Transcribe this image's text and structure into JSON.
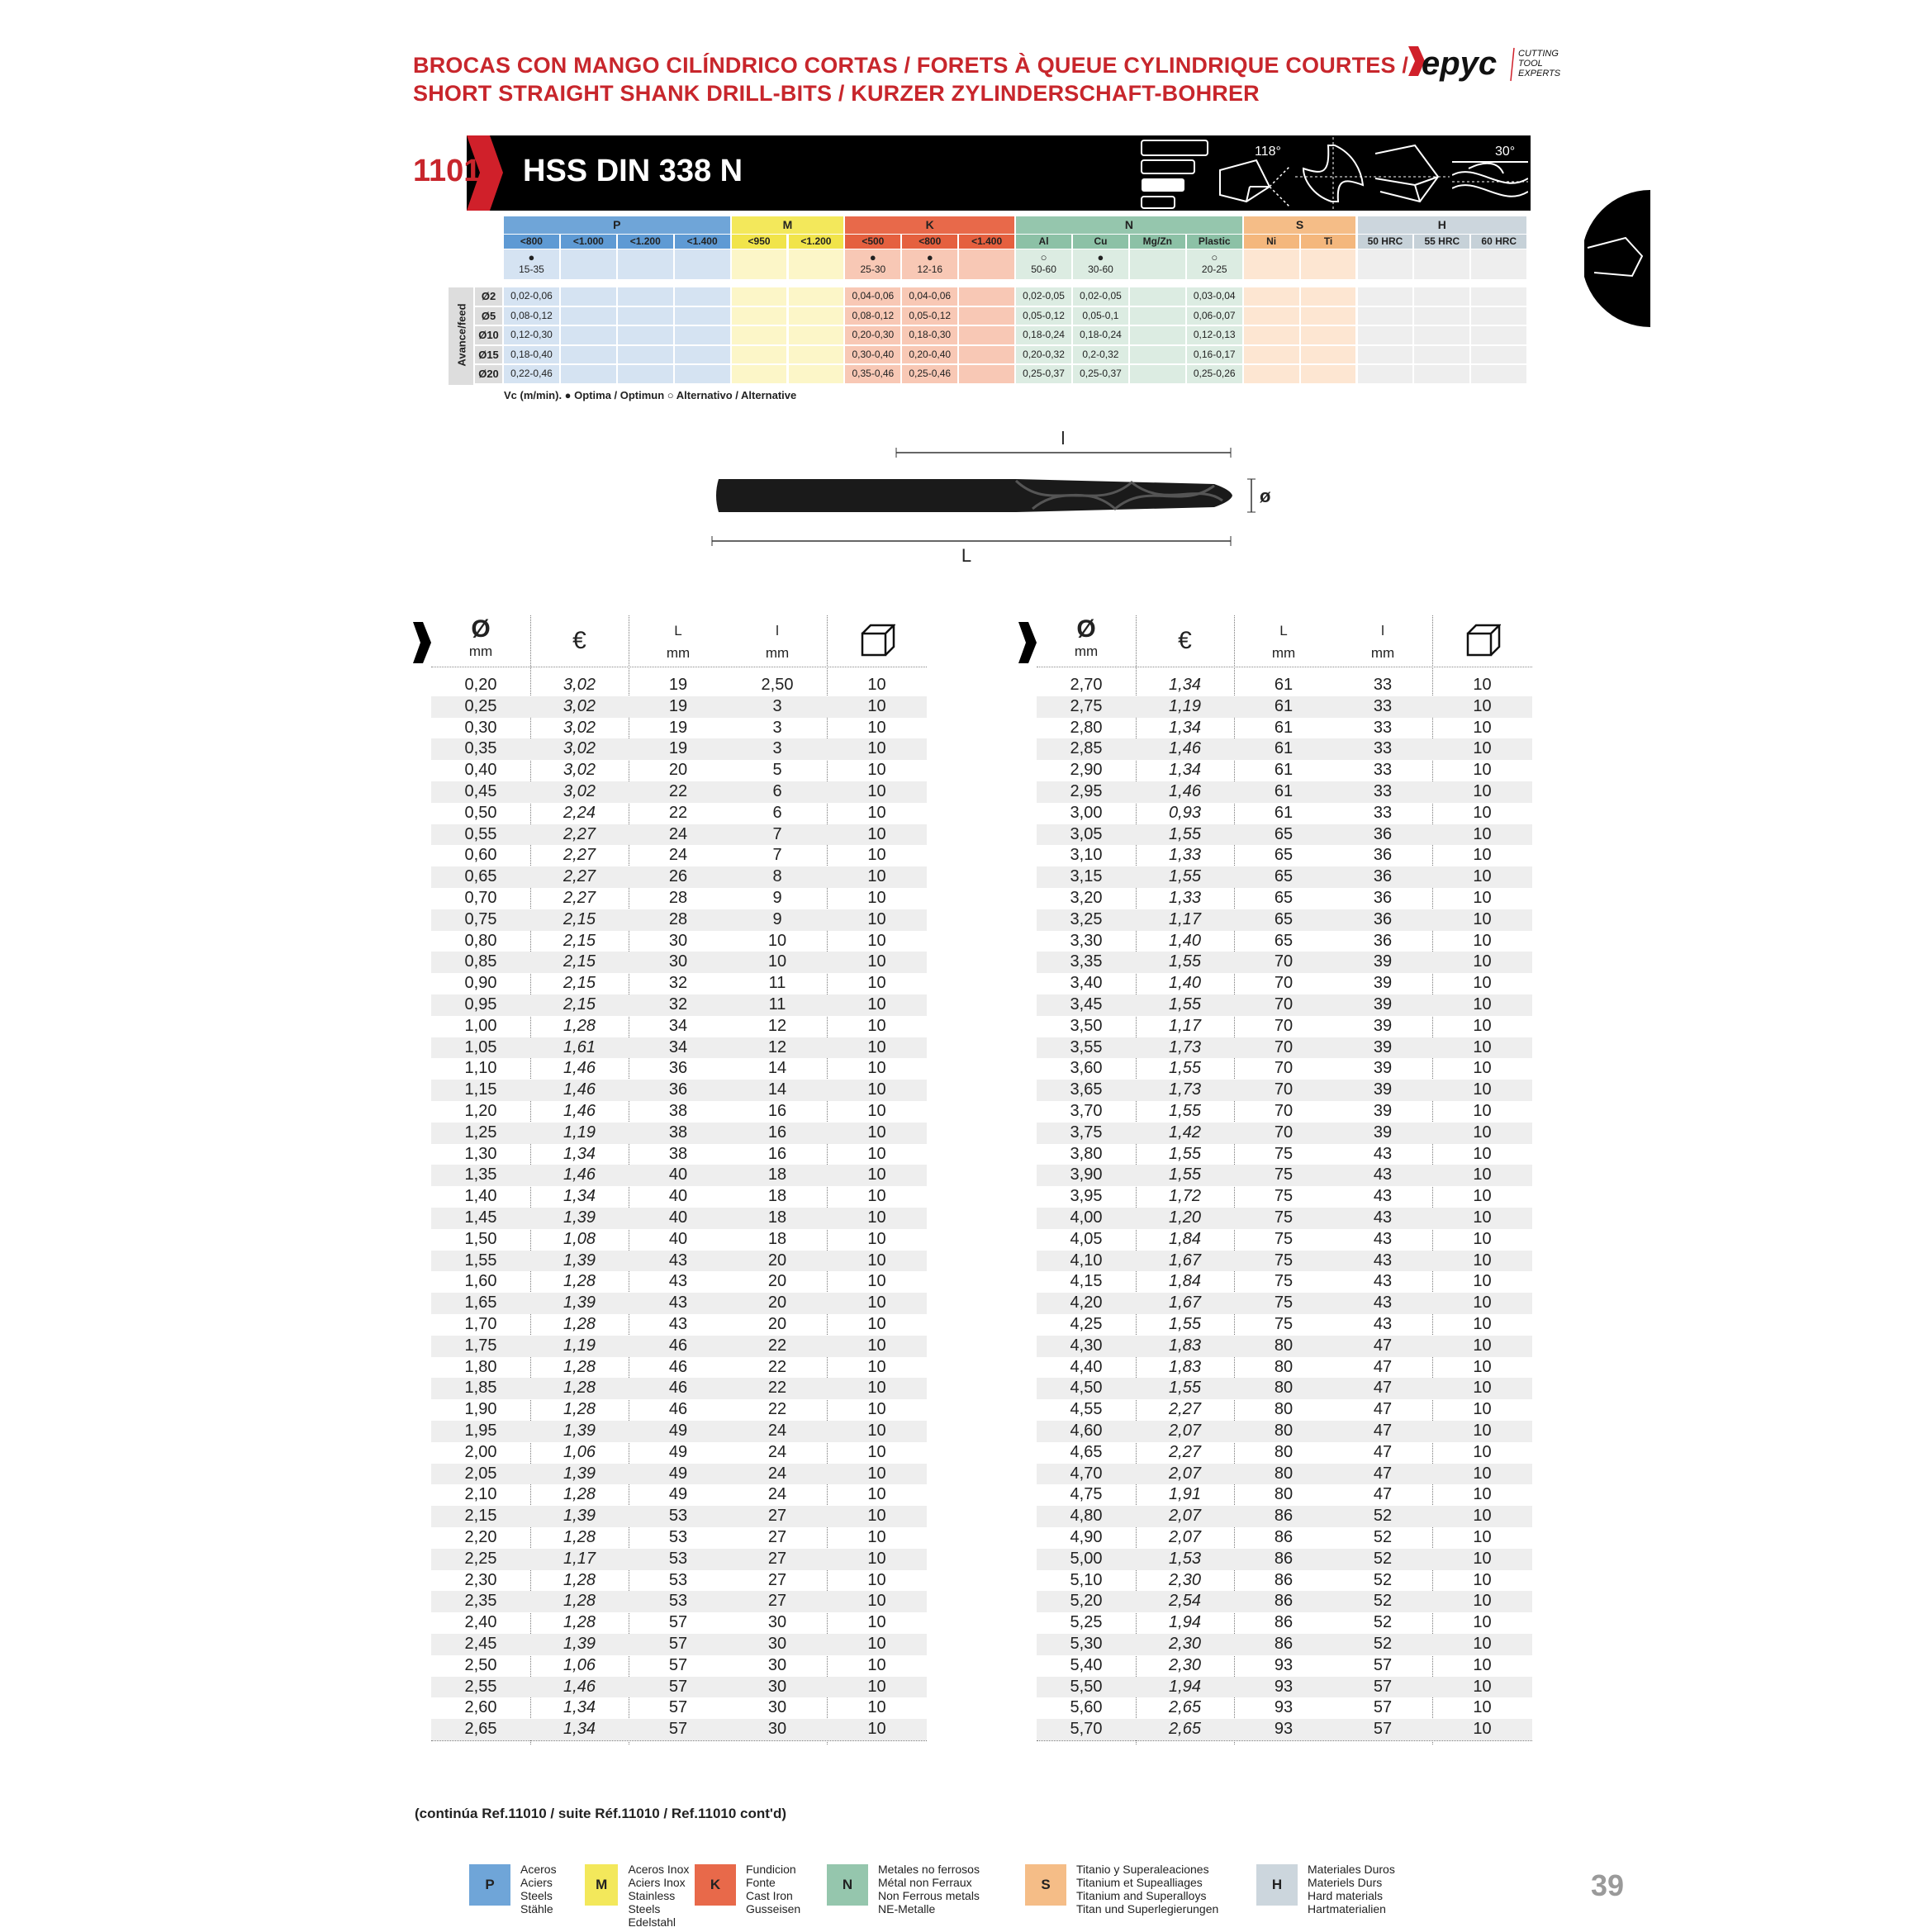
{
  "header": {
    "title_line1": "BROCAS CON MANGO CILÍNDRICO CORTAS / FORETS À QUEUE CYLINDRIQUE COURTES /",
    "title_line2": "SHORT STRAIGHT SHANK DRILL-BITS / KURZER ZYLINDERSCHAFT-BOHRER",
    "logo_text": "Hepyc",
    "logo_tagline": [
      "CUTTING",
      "TOOL",
      "EXPERTS"
    ]
  },
  "banner": {
    "code": "1101",
    "name": "HSS DIN 338 N",
    "icons": [
      "length-series-icon",
      "point-angle-118-icon",
      "cross-section-icon",
      "drill-tip-icon",
      "helix-angle-30-icon"
    ],
    "angle_118": "118°",
    "angle_30": "30°"
  },
  "material_table": {
    "row_group_label": "Avance/feed",
    "diameters": [
      "Ø2",
      "Ø5",
      "Ø10",
      "Ø15",
      "Ø20"
    ],
    "groups": [
      {
        "code": "P",
        "color": "#6fa5d8",
        "sub_color": "#5e9ad4",
        "light": "#d5e3f2",
        "cols": [
          {
            "label": "<800",
            "vc_symbol": "●",
            "vc": "15-35",
            "feeds": [
              "0,02-0,06",
              "0,08-0,12",
              "0,12-0,30",
              "0,18-0,40",
              "0,22-0,46"
            ]
          },
          {
            "label": "<1.000",
            "vc_symbol": "",
            "vc": "",
            "feeds": [
              "",
              "",
              "",
              "",
              ""
            ]
          },
          {
            "label": "<1.200",
            "vc_symbol": "",
            "vc": "",
            "feeds": [
              "",
              "",
              "",
              "",
              ""
            ]
          },
          {
            "label": "<1.400",
            "vc_symbol": "",
            "vc": "",
            "feeds": [
              "",
              "",
              "",
              "",
              ""
            ]
          }
        ]
      },
      {
        "code": "M",
        "color": "#f3e85b",
        "sub_color": "#f1e44a",
        "light": "#fcf6c8",
        "cols": [
          {
            "label": "<950",
            "vc_symbol": "",
            "vc": "",
            "feeds": [
              "",
              "",
              "",
              "",
              ""
            ]
          },
          {
            "label": "<1.200",
            "vc_symbol": "",
            "vc": "",
            "feeds": [
              "",
              "",
              "",
              "",
              ""
            ]
          }
        ]
      },
      {
        "code": "K",
        "color": "#e8694a",
        "sub_color": "#e5603f",
        "light": "#f8c8b5",
        "cols": [
          {
            "label": "<500",
            "vc_symbol": "●",
            "vc": "25-30",
            "feeds": [
              "0,04-0,06",
              "0,08-0,12",
              "0,20-0,30",
              "0,30-0,40",
              "0,35-0,46"
            ]
          },
          {
            "label": "<800",
            "vc_symbol": "●",
            "vc": "12-16",
            "feeds": [
              "0,04-0,06",
              "0,05-0,12",
              "0,18-0,30",
              "0,20-0,40",
              "0,25-0,46"
            ]
          },
          {
            "label": "<1.400",
            "vc_symbol": "",
            "vc": "",
            "feeds": [
              "",
              "",
              "",
              "",
              ""
            ]
          }
        ]
      },
      {
        "code": "N",
        "color": "#95c6ad",
        "sub_color": "#8cc1a6",
        "light": "#dcece2",
        "cols": [
          {
            "label": "Al",
            "vc_symbol": "○",
            "vc": "50-60",
            "feeds": [
              "0,02-0,05",
              "0,05-0,12",
              "0,18-0,24",
              "0,20-0,32",
              "0,25-0,37"
            ]
          },
          {
            "label": "Cu",
            "vc_symbol": "●",
            "vc": "30-60",
            "feeds": [
              "0,02-0,05",
              "0,05-0,1",
              "0,18-0,24",
              "0,2-0,32",
              "0,25-0,37"
            ]
          },
          {
            "label": "Mg/Zn",
            "vc_symbol": "",
            "vc": "",
            "feeds": [
              "",
              "",
              "",
              "",
              ""
            ]
          },
          {
            "label": "Plastic",
            "vc_symbol": "○",
            "vc": "20-25",
            "feeds": [
              "0,03-0,04",
              "0,06-0,07",
              "0,12-0,13",
              "0,16-0,17",
              "0,25-0,26"
            ]
          }
        ]
      },
      {
        "code": "S",
        "color": "#f5bd87",
        "sub_color": "#f4b77d",
        "light": "#fde6d2",
        "cols": [
          {
            "label": "Ni",
            "vc_symbol": "",
            "vc": "",
            "feeds": [
              "",
              "",
              "",
              "",
              ""
            ]
          },
          {
            "label": "Ti",
            "vc_symbol": "",
            "vc": "",
            "feeds": [
              "",
              "",
              "",
              "",
              ""
            ]
          }
        ]
      },
      {
        "code": "H",
        "color": "#ccd6dd",
        "sub_color": "#c6d1d8",
        "light": "#eeeeee",
        "cols": [
          {
            "label": "50 HRC",
            "vc_symbol": "",
            "vc": "",
            "feeds": [
              "",
              "",
              "",
              "",
              ""
            ]
          },
          {
            "label": "55 HRC",
            "vc_symbol": "",
            "vc": "",
            "feeds": [
              "",
              "",
              "",
              "",
              ""
            ]
          },
          {
            "label": "60 HRC",
            "vc_symbol": "",
            "vc": "",
            "feeds": [
              "",
              "",
              "",
              "",
              ""
            ]
          }
        ]
      }
    ],
    "legend": "Vc (m/min). ● Optima / Optimun  ○ Alternativo / Alternative"
  },
  "drawing": {
    "label_l": "l",
    "label_L": "L",
    "label_d": "ø"
  },
  "table_headers": {
    "diameter": "Ø",
    "diameter_unit": "mm",
    "price": "€",
    "length_total": "L",
    "length_total_unit": "mm",
    "length_flute": "l",
    "length_flute_unit": "mm",
    "pack_icon": "box-icon"
  },
  "tables": [
    {
      "rows": [
        [
          "0,20",
          "3,02",
          "19",
          "2,50",
          "10"
        ],
        [
          "0,25",
          "3,02",
          "19",
          "3",
          "10"
        ],
        [
          "0,30",
          "3,02",
          "19",
          "3",
          "10"
        ],
        [
          "0,35",
          "3,02",
          "19",
          "3",
          "10"
        ],
        [
          "0,40",
          "3,02",
          "20",
          "5",
          "10"
        ],
        [
          "0,45",
          "3,02",
          "22",
          "6",
          "10"
        ],
        [
          "0,50",
          "2,24",
          "22",
          "6",
          "10"
        ],
        [
          "0,55",
          "2,27",
          "24",
          "7",
          "10"
        ],
        [
          "0,60",
          "2,27",
          "24",
          "7",
          "10"
        ],
        [
          "0,65",
          "2,27",
          "26",
          "8",
          "10"
        ],
        [
          "0,70",
          "2,27",
          "28",
          "9",
          "10"
        ],
        [
          "0,75",
          "2,15",
          "28",
          "9",
          "10"
        ],
        [
          "0,80",
          "2,15",
          "30",
          "10",
          "10"
        ],
        [
          "0,85",
          "2,15",
          "30",
          "10",
          "10"
        ],
        [
          "0,90",
          "2,15",
          "32",
          "11",
          "10"
        ],
        [
          "0,95",
          "2,15",
          "32",
          "11",
          "10"
        ],
        [
          "1,00",
          "1,28",
          "34",
          "12",
          "10"
        ],
        [
          "1,05",
          "1,61",
          "34",
          "12",
          "10"
        ],
        [
          "1,10",
          "1,46",
          "36",
          "14",
          "10"
        ],
        [
          "1,15",
          "1,46",
          "36",
          "14",
          "10"
        ],
        [
          "1,20",
          "1,46",
          "38",
          "16",
          "10"
        ],
        [
          "1,25",
          "1,19",
          "38",
          "16",
          "10"
        ],
        [
          "1,30",
          "1,34",
          "38",
          "16",
          "10"
        ],
        [
          "1,35",
          "1,46",
          "40",
          "18",
          "10"
        ],
        [
          "1,40",
          "1,34",
          "40",
          "18",
          "10"
        ],
        [
          "1,45",
          "1,39",
          "40",
          "18",
          "10"
        ],
        [
          "1,50",
          "1,08",
          "40",
          "18",
          "10"
        ],
        [
          "1,55",
          "1,39",
          "43",
          "20",
          "10"
        ],
        [
          "1,60",
          "1,28",
          "43",
          "20",
          "10"
        ],
        [
          "1,65",
          "1,39",
          "43",
          "20",
          "10"
        ],
        [
          "1,70",
          "1,28",
          "43",
          "20",
          "10"
        ],
        [
          "1,75",
          "1,19",
          "46",
          "22",
          "10"
        ],
        [
          "1,80",
          "1,28",
          "46",
          "22",
          "10"
        ],
        [
          "1,85",
          "1,28",
          "46",
          "22",
          "10"
        ],
        [
          "1,90",
          "1,28",
          "46",
          "22",
          "10"
        ],
        [
          "1,95",
          "1,39",
          "49",
          "24",
          "10"
        ],
        [
          "2,00",
          "1,06",
          "49",
          "24",
          "10"
        ],
        [
          "2,05",
          "1,39",
          "49",
          "24",
          "10"
        ],
        [
          "2,10",
          "1,28",
          "49",
          "24",
          "10"
        ],
        [
          "2,15",
          "1,39",
          "53",
          "27",
          "10"
        ],
        [
          "2,20",
          "1,28",
          "53",
          "27",
          "10"
        ],
        [
          "2,25",
          "1,17",
          "53",
          "27",
          "10"
        ],
        [
          "2,30",
          "1,28",
          "53",
          "27",
          "10"
        ],
        [
          "2,35",
          "1,28",
          "53",
          "27",
          "10"
        ],
        [
          "2,40",
          "1,28",
          "57",
          "30",
          "10"
        ],
        [
          "2,45",
          "1,39",
          "57",
          "30",
          "10"
        ],
        [
          "2,50",
          "1,06",
          "57",
          "30",
          "10"
        ],
        [
          "2,55",
          "1,46",
          "57",
          "30",
          "10"
        ],
        [
          "2,60",
          "1,34",
          "57",
          "30",
          "10"
        ],
        [
          "2,65",
          "1,34",
          "57",
          "30",
          "10"
        ]
      ]
    },
    {
      "rows": [
        [
          "2,70",
          "1,34",
          "61",
          "33",
          "10"
        ],
        [
          "2,75",
          "1,19",
          "61",
          "33",
          "10"
        ],
        [
          "2,80",
          "1,34",
          "61",
          "33",
          "10"
        ],
        [
          "2,85",
          "1,46",
          "61",
          "33",
          "10"
        ],
        [
          "2,90",
          "1,34",
          "61",
          "33",
          "10"
        ],
        [
          "2,95",
          "1,46",
          "61",
          "33",
          "10"
        ],
        [
          "3,00",
          "0,93",
          "61",
          "33",
          "10"
        ],
        [
          "3,05",
          "1,55",
          "65",
          "36",
          "10"
        ],
        [
          "3,10",
          "1,33",
          "65",
          "36",
          "10"
        ],
        [
          "3,15",
          "1,55",
          "65",
          "36",
          "10"
        ],
        [
          "3,20",
          "1,33",
          "65",
          "36",
          "10"
        ],
        [
          "3,25",
          "1,17",
          "65",
          "36",
          "10"
        ],
        [
          "3,30",
          "1,40",
          "65",
          "36",
          "10"
        ],
        [
          "3,35",
          "1,55",
          "70",
          "39",
          "10"
        ],
        [
          "3,40",
          "1,40",
          "70",
          "39",
          "10"
        ],
        [
          "3,45",
          "1,55",
          "70",
          "39",
          "10"
        ],
        [
          "3,50",
          "1,17",
          "70",
          "39",
          "10"
        ],
        [
          "3,55",
          "1,73",
          "70",
          "39",
          "10"
        ],
        [
          "3,60",
          "1,55",
          "70",
          "39",
          "10"
        ],
        [
          "3,65",
          "1,73",
          "70",
          "39",
          "10"
        ],
        [
          "3,70",
          "1,55",
          "70",
          "39",
          "10"
        ],
        [
          "3,75",
          "1,42",
          "70",
          "39",
          "10"
        ],
        [
          "3,80",
          "1,55",
          "75",
          "43",
          "10"
        ],
        [
          "3,90",
          "1,55",
          "75",
          "43",
          "10"
        ],
        [
          "3,95",
          "1,72",
          "75",
          "43",
          "10"
        ],
        [
          "4,00",
          "1,20",
          "75",
          "43",
          "10"
        ],
        [
          "4,05",
          "1,84",
          "75",
          "43",
          "10"
        ],
        [
          "4,10",
          "1,67",
          "75",
          "43",
          "10"
        ],
        [
          "4,15",
          "1,84",
          "75",
          "43",
          "10"
        ],
        [
          "4,20",
          "1,67",
          "75",
          "43",
          "10"
        ],
        [
          "4,25",
          "1,55",
          "75",
          "43",
          "10"
        ],
        [
          "4,30",
          "1,83",
          "80",
          "47",
          "10"
        ],
        [
          "4,40",
          "1,83",
          "80",
          "47",
          "10"
        ],
        [
          "4,50",
          "1,55",
          "80",
          "47",
          "10"
        ],
        [
          "4,55",
          "2,27",
          "80",
          "47",
          "10"
        ],
        [
          "4,60",
          "2,07",
          "80",
          "47",
          "10"
        ],
        [
          "4,65",
          "2,27",
          "80",
          "47",
          "10"
        ],
        [
          "4,70",
          "2,07",
          "80",
          "47",
          "10"
        ],
        [
          "4,75",
          "1,91",
          "80",
          "47",
          "10"
        ],
        [
          "4,80",
          "2,07",
          "86",
          "52",
          "10"
        ],
        [
          "4,90",
          "2,07",
          "86",
          "52",
          "10"
        ],
        [
          "5,00",
          "1,53",
          "86",
          "52",
          "10"
        ],
        [
          "5,10",
          "2,30",
          "86",
          "52",
          "10"
        ],
        [
          "5,20",
          "2,54",
          "86",
          "52",
          "10"
        ],
        [
          "5,25",
          "1,94",
          "86",
          "52",
          "10"
        ],
        [
          "5,30",
          "2,30",
          "86",
          "52",
          "10"
        ],
        [
          "5,40",
          "2,30",
          "93",
          "57",
          "10"
        ],
        [
          "5,50",
          "1,94",
          "93",
          "57",
          "10"
        ],
        [
          "5,60",
          "2,65",
          "93",
          "57",
          "10"
        ],
        [
          "5,70",
          "2,65",
          "93",
          "57",
          "10"
        ]
      ]
    }
  ],
  "footer": {
    "continuation": "(continúa Ref.11010 / suite Réf.11010 / Ref.11010 cont'd)",
    "legend": [
      {
        "code": "P",
        "color": "#6fa5d8",
        "lines": [
          "Aceros",
          "Aciers",
          "Steels",
          "Stähle"
        ]
      },
      {
        "code": "M",
        "color": "#f3e85b",
        "lines": [
          "Aceros Inox",
          "Aciers Inox",
          "Stainless Steels",
          "Edelstahl"
        ]
      },
      {
        "code": "K",
        "color": "#e8694a",
        "lines": [
          "Fundicion",
          "Fonte",
          "Cast Iron",
          "Gusseisen"
        ]
      },
      {
        "code": "N",
        "color": "#95c6ad",
        "lines": [
          "Metales no ferrosos",
          "Métal non Ferraux",
          "Non Ferrous metals",
          "NE-Metalle"
        ]
      },
      {
        "code": "S",
        "color": "#f5bd87",
        "lines": [
          "Titanio y Superaleaciones",
          "Titanium et Supealliages",
          "Titanium and Superalloys",
          "Titan und Superlegierungen"
        ]
      },
      {
        "code": "H",
        "color": "#ccd6dd",
        "lines": [
          "Materiales Duros",
          "Materiels Durs",
          "Hard materials",
          "Hartmaterialien"
        ]
      }
    ],
    "page_number": "39"
  }
}
